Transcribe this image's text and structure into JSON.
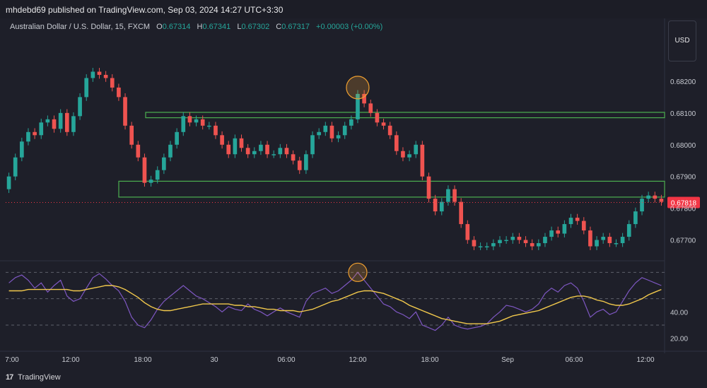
{
  "header": {
    "publish_line": "mhdebd69 published on TradingView.com, Sep 03, 2024 14:27 UTC+3:30",
    "symbol": "Australian Dollar / U.S. Dollar, 15, FXCM",
    "ohlc": {
      "open_label": "O",
      "open": "0.67314",
      "high_label": "H",
      "high": "0.67341",
      "low_label": "L",
      "low": "0.67302",
      "close_label": "C",
      "close": "0.67317",
      "change": "+0.00003 (+0.00%)"
    },
    "currency_button": "USD"
  },
  "colors": {
    "background": "#1e1f29",
    "up_candle": "#26a69a",
    "down_candle": "#ef5350",
    "zone_outline": "#4caf50",
    "rsi_line": "#7e57c2",
    "rsi_ma_line": "#f2c94c",
    "marker_circle": "#f0a030",
    "price_tag": "#f23645"
  },
  "footer": {
    "logo_text": "TradingView"
  },
  "chart_data": {
    "type": "candlestick",
    "price_axis": {
      "ticks": [
        "0.68200",
        "0.68100",
        "0.68000",
        "0.67900",
        "0.67800",
        "0.67700"
      ],
      "ylim": [
        0.6765,
        0.683
      ]
    },
    "last_price": "0.67818",
    "time_ticks": [
      "7:00",
      "12:00",
      "18:00",
      "30",
      "06:00",
      "12:00",
      "18:00",
      "Sep",
      "06:00",
      "12:00"
    ],
    "zones": [
      {
        "from": 0.68085,
        "to": 0.68102,
        "kind": "resistance"
      },
      {
        "from": 0.67835,
        "to": 0.67885,
        "kind": "support"
      }
    ],
    "closes": [
      0.679,
      0.6796,
      0.6801,
      0.6804,
      0.6803,
      0.6807,
      0.6808,
      0.6805,
      0.681,
      0.6804,
      0.6809,
      0.6815,
      0.6821,
      0.6823,
      0.6822,
      0.6821,
      0.6818,
      0.6815,
      0.6806,
      0.68,
      0.6796,
      0.6788,
      0.6789,
      0.6792,
      0.6796,
      0.68,
      0.6804,
      0.6809,
      0.6807,
      0.6808,
      0.6806,
      0.6806,
      0.6803,
      0.68,
      0.6797,
      0.6802,
      0.6799,
      0.6797,
      0.6798,
      0.68,
      0.6797,
      0.6797,
      0.6799,
      0.6797,
      0.6795,
      0.6792,
      0.6797,
      0.6803,
      0.6804,
      0.6806,
      0.6802,
      0.6803,
      0.6806,
      0.6808,
      0.6816,
      0.6813,
      0.681,
      0.6807,
      0.6806,
      0.6803,
      0.6798,
      0.6796,
      0.6797,
      0.68,
      0.679,
      0.6783,
      0.6779,
      0.6782,
      0.6786,
      0.6782,
      0.6775,
      0.677,
      0.6768,
      0.6768,
      0.6768,
      0.6769,
      0.677,
      0.677,
      0.6771,
      0.677,
      0.6769,
      0.6768,
      0.6769,
      0.6771,
      0.6773,
      0.6772,
      0.6775,
      0.6777,
      0.6776,
      0.6773,
      0.6768,
      0.677,
      0.6771,
      0.6769,
      0.6769,
      0.6771,
      0.6775,
      0.6779,
      0.6783,
      0.6784,
      0.6783,
      0.6782
    ],
    "rsi": {
      "ticks": [
        "40.00",
        "20.00"
      ],
      "ylim": [
        15,
        75
      ],
      "levels": [
        70,
        50,
        30
      ],
      "values": [
        62,
        66,
        68,
        64,
        58,
        62,
        55,
        60,
        64,
        52,
        48,
        50,
        58,
        66,
        69,
        65,
        60,
        56,
        48,
        36,
        30,
        28,
        34,
        42,
        48,
        52,
        56,
        60,
        56,
        52,
        50,
        47,
        44,
        40,
        44,
        42,
        41,
        46,
        42,
        40,
        37,
        40,
        43,
        40,
        38,
        36,
        48,
        54,
        56,
        58,
        54,
        56,
        60,
        64,
        70,
        64,
        58,
        52,
        46,
        44,
        40,
        38,
        35,
        40,
        30,
        28,
        26,
        30,
        36,
        30,
        28,
        27,
        28,
        29,
        31,
        36,
        40,
        45,
        44,
        42,
        40,
        42,
        46,
        54,
        58,
        55,
        60,
        62,
        58,
        48,
        36,
        40,
        42,
        38,
        40,
        48,
        56,
        62,
        66,
        64,
        62,
        60
      ],
      "ma": [
        56,
        56,
        56,
        57,
        57,
        57,
        57,
        57,
        57,
        57,
        56,
        56,
        57,
        58,
        59,
        60,
        60,
        59,
        57,
        54,
        51,
        47,
        44,
        42,
        41,
        41,
        42,
        43,
        44,
        45,
        46,
        46,
        46,
        46,
        46,
        45,
        45,
        44,
        44,
        43,
        42,
        42,
        41,
        41,
        41,
        40,
        41,
        42,
        44,
        46,
        48,
        49,
        51,
        53,
        55,
        56,
        56,
        55,
        54,
        52,
        50,
        48,
        45,
        43,
        41,
        39,
        37,
        35,
        34,
        33,
        32,
        31,
        31,
        31,
        31,
        32,
        33,
        35,
        37,
        38,
        39,
        40,
        41,
        43,
        45,
        47,
        49,
        51,
        52,
        52,
        51,
        49,
        48,
        46,
        45,
        45,
        46,
        48,
        50,
        53,
        55,
        57
      ]
    }
  }
}
